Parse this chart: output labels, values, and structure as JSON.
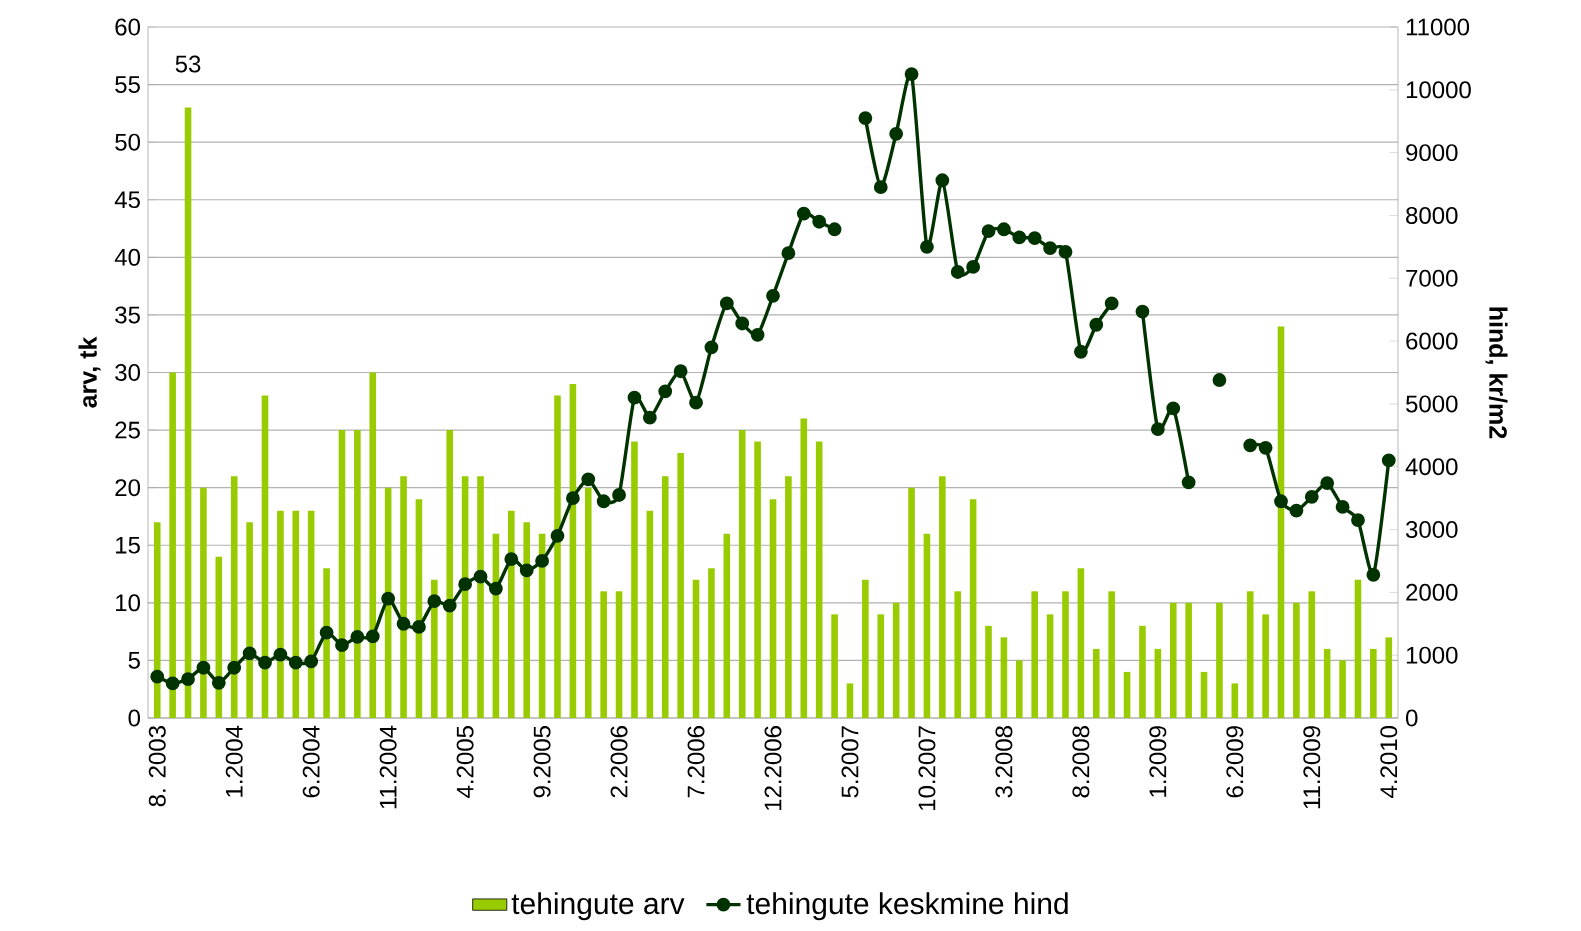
{
  "chart_data": {
    "type": "bar",
    "categories": [
      "8. 2003",
      null,
      null,
      null,
      null,
      "1.2004",
      null,
      null,
      null,
      null,
      "6.2004",
      null,
      null,
      null,
      null,
      "11.2004",
      null,
      null,
      null,
      null,
      "4.2005",
      null,
      null,
      null,
      null,
      "9.2005",
      null,
      null,
      null,
      null,
      "2.2006",
      null,
      null,
      null,
      null,
      "7.2006",
      null,
      null,
      null,
      null,
      "12.2006",
      null,
      null,
      null,
      null,
      "5.2007",
      null,
      null,
      null,
      null,
      "10.2007",
      null,
      null,
      null,
      null,
      "3.2008",
      null,
      null,
      null,
      null,
      "8.2008",
      null,
      null,
      null,
      null,
      "1.2009",
      null,
      null,
      null,
      null,
      "6.2009",
      null,
      null,
      null,
      null,
      "11.2009",
      null,
      null,
      null,
      null,
      "4.2010"
    ],
    "series": [
      {
        "name": "tehingute arv",
        "color": "#99cc00",
        "values": [
          17,
          30,
          53,
          20,
          14,
          21,
          17,
          28,
          18,
          18,
          18,
          13,
          25,
          25,
          30,
          20,
          21,
          19,
          12,
          25,
          21,
          21,
          16,
          18,
          17,
          16,
          28,
          29,
          20,
          11,
          11,
          24,
          18,
          21,
          23,
          12,
          13,
          16,
          25,
          24,
          19,
          21,
          26,
          24,
          9,
          3,
          12,
          9,
          10,
          20,
          16,
          21,
          11,
          19,
          8,
          7,
          5,
          11,
          9,
          11,
          13,
          6,
          11,
          4,
          8,
          6,
          10,
          10,
          4,
          10,
          3,
          11,
          9,
          34,
          10,
          11,
          6,
          5,
          12,
          6,
          7
        ],
        "value_labels": [
          null,
          null,
          "53",
          null,
          null,
          null,
          null,
          null,
          null,
          null,
          null,
          null,
          null,
          null,
          null,
          null,
          null,
          null,
          null,
          null,
          null,
          null,
          null,
          null,
          null,
          null,
          null,
          null,
          null,
          null,
          null,
          null,
          null,
          null,
          null,
          null,
          null,
          null,
          null,
          null,
          null,
          null,
          null,
          null,
          null,
          null,
          null,
          null,
          null,
          null,
          null,
          null,
          null,
          null,
          null,
          null,
          null,
          null,
          null,
          null,
          null,
          null,
          null,
          null,
          null,
          null,
          null,
          null,
          null,
          null,
          null,
          null,
          null,
          null,
          null,
          null,
          null,
          null,
          null,
          null,
          null
        ]
      },
      {
        "name": "tehingute keskmine hind",
        "type": "line",
        "axis": "y2",
        "color": "#003300",
        "values": [
          660,
          550,
          620,
          800,
          560,
          800,
          1030,
          880,
          1010,
          880,
          900,
          1360,
          1160,
          1290,
          1300,
          1900,
          1500,
          1450,
          1860,
          1790,
          2130,
          2250,
          2060,
          2530,
          2350,
          2500,
          2900,
          3500,
          3800,
          3450,
          3550,
          5100,
          4780,
          5200,
          5520,
          5020,
          5900,
          6600,
          6280,
          6100,
          6720,
          7400,
          8030,
          7900,
          7780,
          null,
          9550,
          8450,
          9300,
          10250,
          7500,
          8560,
          7100,
          7180,
          7750,
          7780,
          7650,
          7640,
          7480,
          7420,
          5830,
          6260,
          6600,
          null,
          6470,
          4600,
          4930,
          3750,
          null,
          5380,
          null,
          4340,
          4300,
          3450,
          3300,
          3520,
          3740,
          3360,
          3150,
          2280,
          4100
        ]
      }
    ],
    "ylabel": "arv, tk",
    "y2label": "hind, kr/m2",
    "ylim": [
      0,
      60
    ],
    "yticks": [
      0,
      5,
      10,
      15,
      20,
      25,
      30,
      35,
      40,
      45,
      50,
      55,
      60
    ],
    "y2lim": [
      0,
      11000
    ],
    "y2ticks": [
      0,
      1000,
      2000,
      3000,
      4000,
      5000,
      6000,
      7000,
      8000,
      9000,
      10000,
      11000
    ],
    "grid": "y",
    "legend": "bottom",
    "marker": "circle"
  }
}
